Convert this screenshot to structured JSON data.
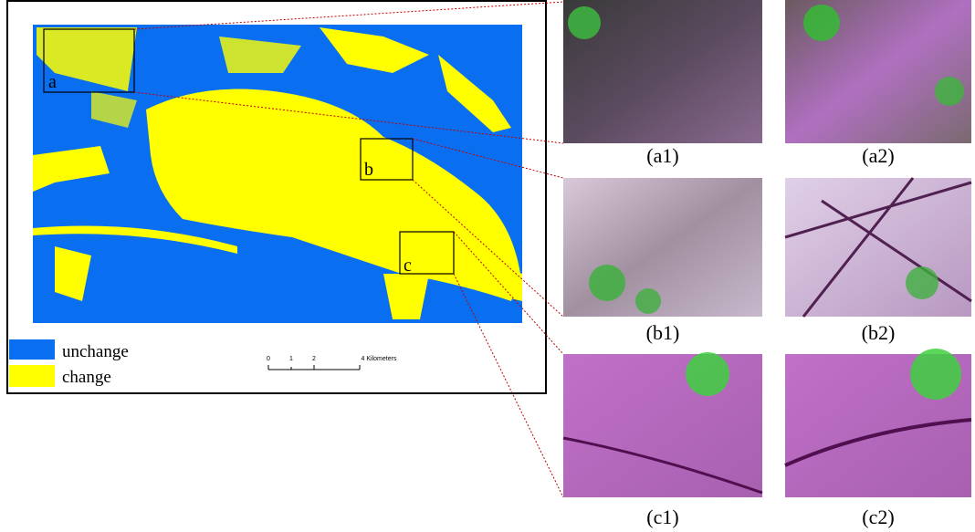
{
  "map": {
    "box_labels": [
      "a",
      "b",
      "c"
    ],
    "legend": [
      "unchange",
      "change"
    ],
    "scale": [
      "0",
      "1",
      "2",
      "4 Kilometers"
    ]
  },
  "panels": [
    "(a1)",
    "(a2)",
    "(b1)",
    "(b2)",
    "(c1)",
    "(c2)"
  ]
}
